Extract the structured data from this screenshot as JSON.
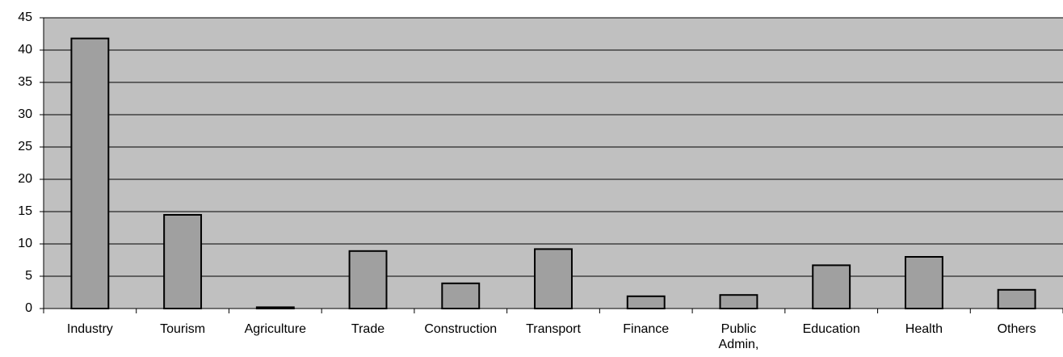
{
  "chart_data": {
    "type": "bar",
    "categories": [
      "Industry",
      "Tourism",
      "Agriculture",
      "Trade",
      "Construction",
      "Transport",
      "Finance",
      "Public\nAdmin,",
      "Education",
      "Health",
      "Others"
    ],
    "values": [
      41.8,
      14.5,
      0.2,
      8.9,
      3.9,
      9.2,
      1.9,
      2.1,
      6.7,
      8.0,
      2.9
    ],
    "color": "#a0a0a0",
    "background": "#c0c0c0",
    "ylim": [
      0,
      45
    ],
    "yticks": [
      0,
      5,
      10,
      15,
      20,
      25,
      30,
      35,
      40,
      45
    ],
    "grid": true
  }
}
